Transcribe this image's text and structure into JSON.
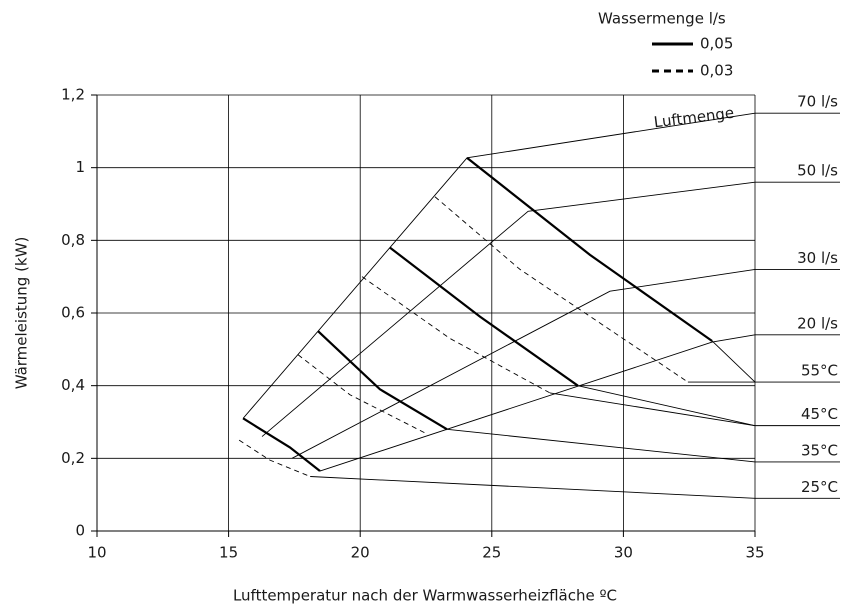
{
  "chart_data": {
    "type": "line",
    "xlabel": "Lufttemperatur nach der Warmwasserheizfläche ºC",
    "ylabel": "Wärmeleistung (kW)",
    "xlim": [
      10,
      35
    ],
    "xticks": [
      10,
      15,
      20,
      25,
      30,
      35
    ],
    "ylim": [
      0,
      1.2
    ],
    "yticks": [
      0,
      {
        "value": 0.2,
        "label": "0,2"
      },
      {
        "value": 0.4,
        "label": "0,4"
      },
      {
        "value": 0.6,
        "label": "0,6"
      },
      {
        "value": 0.8,
        "label": "0,8"
      },
      1,
      {
        "value": 1.2,
        "label": "1,2"
      }
    ],
    "grid": true,
    "color": "#000000",
    "legend": {
      "title": "Wassermenge l/s",
      "entries": [
        {
          "label": "0,05",
          "style": "solid"
        },
        {
          "label": "0,03",
          "style": "dashed"
        }
      ]
    },
    "annotation": "Luftmenge",
    "airflow": [
      {
        "label": "70 l/s",
        "x": [
          15.55,
          24.06,
          35
        ],
        "y": [
          0.31,
          1.027,
          1.15
        ]
      },
      {
        "label": "50 l/s",
        "x": [
          16.27,
          26.38,
          35
        ],
        "y": [
          0.26,
          0.88,
          0.96
        ]
      },
      {
        "label": "30 l/s",
        "x": [
          17.41,
          29.49,
          35
        ],
        "y": [
          0.2,
          0.66,
          0.72
        ]
      },
      {
        "label": "20 l/s",
        "x": [
          18.47,
          33.37,
          35
        ],
        "y": [
          0.165,
          0.52,
          0.54
        ]
      }
    ],
    "temperatures": [
      {
        "label": "55°C",
        "solid": {
          "x": [
            24.06,
            28.73,
            33.37
          ],
          "y": [
            1.027,
            0.76,
            0.523
          ]
        },
        "dashed": {
          "x": [
            22.84,
            26.07,
            32.45
          ],
          "y": [
            0.92,
            0.72,
            0.41
          ]
        },
        "leaders": [
          {
            "x": [
              33.37,
              35
            ],
            "y": [
              0.523,
              0.41
            ]
          },
          {
            "x": [
              32.45,
              35
            ],
            "y": [
              0.41,
              0.41
            ]
          }
        ]
      },
      {
        "label": "45°C",
        "solid": {
          "x": [
            21.13,
            24.55,
            28.27
          ],
          "y": [
            0.78,
            0.59,
            0.4
          ]
        },
        "dashed": {
          "x": [
            20.07,
            23.41,
            27.21
          ],
          "y": [
            0.7,
            0.53,
            0.38
          ]
        },
        "leaders": [
          {
            "x": [
              28.27,
              35
            ],
            "y": [
              0.4,
              0.29
            ]
          },
          {
            "x": [
              27.21,
              35
            ],
            "y": [
              0.38,
              0.29
            ]
          }
        ]
      },
      {
        "label": "35°C",
        "solid": {
          "x": [
            18.4,
            20.75,
            23.3
          ],
          "y": [
            0.55,
            0.39,
            0.28
          ]
        },
        "dashed": {
          "x": [
            17.64,
            19.61,
            22.46
          ],
          "y": [
            0.485,
            0.375,
            0.27
          ]
        },
        "leaders": [
          {
            "x": [
              23.3,
              35
            ],
            "y": [
              0.28,
              0.19
            ]
          }
        ]
      },
      {
        "label": "25°C",
        "solid": {
          "x": [
            15.55,
            17.33,
            18.47
          ],
          "y": [
            0.31,
            0.23,
            0.165
          ]
        },
        "dashed": {
          "x": [
            15.4,
            16.57,
            18.1
          ],
          "y": [
            0.25,
            0.195,
            0.15
          ]
        },
        "leaders": [
          {
            "x": [
              18.1,
              35
            ],
            "y": [
              0.15,
              0.09
            ]
          }
        ]
      }
    ]
  }
}
